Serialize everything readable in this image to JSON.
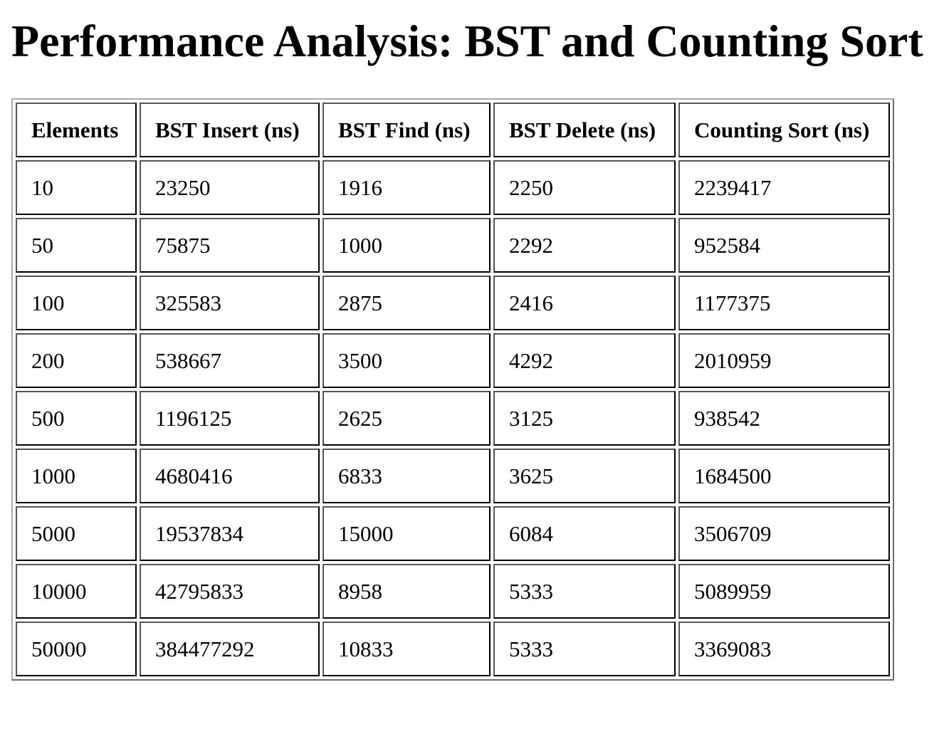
{
  "page_title": "Performance Analysis: BST and Counting Sort",
  "table": {
    "headers": [
      "Elements",
      "BST Insert (ns)",
      "BST Find (ns)",
      "BST Delete (ns)",
      "Counting Sort (ns)"
    ],
    "rows": [
      [
        "10",
        "23250",
        "1916",
        "2250",
        "2239417"
      ],
      [
        "50",
        "75875",
        "1000",
        "2292",
        "952584"
      ],
      [
        "100",
        "325583",
        "2875",
        "2416",
        "1177375"
      ],
      [
        "200",
        "538667",
        "3500",
        "4292",
        "2010959"
      ],
      [
        "500",
        "1196125",
        "2625",
        "3125",
        "938542"
      ],
      [
        "1000",
        "4680416",
        "6833",
        "3625",
        "1684500"
      ],
      [
        "5000",
        "19537834",
        "15000",
        "6084",
        "3506709"
      ],
      [
        "10000",
        "42795833",
        "8958",
        "5333",
        "5089959"
      ],
      [
        "50000",
        "384477292",
        "10833",
        "5333",
        "3369083"
      ]
    ]
  }
}
